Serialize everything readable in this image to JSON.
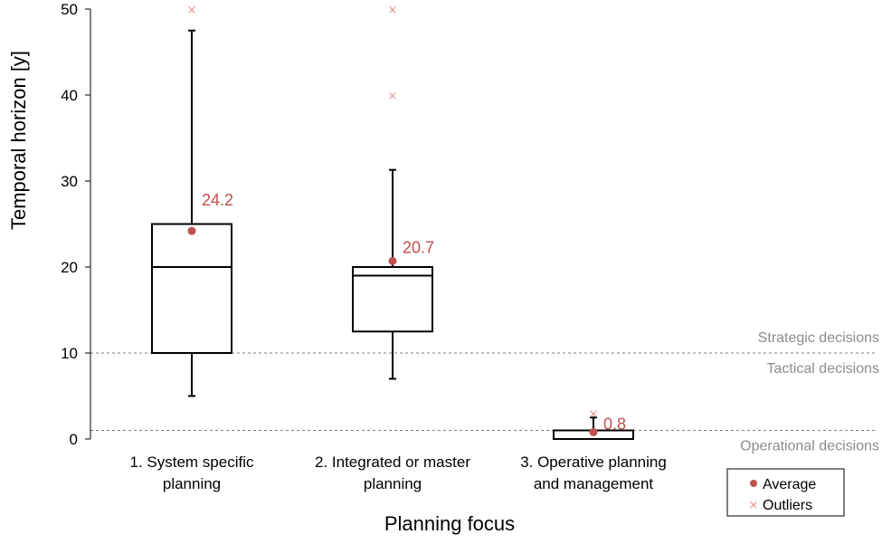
{
  "colors": {
    "accent": "#c0504d",
    "box": "#000000",
    "threshold": "#808080",
    "zone_text": "#8c8c8c"
  },
  "chart_data": {
    "type": "boxplot",
    "ylabel": "Temporal horizon [y]",
    "xlabel": "Planning focus",
    "ylim": [
      0,
      50
    ],
    "yticks": [
      0,
      10,
      20,
      30,
      40,
      50
    ],
    "categories": [
      [
        "1. System specific",
        "planning"
      ],
      [
        "2. Integrated or master",
        "planning"
      ],
      [
        "3. Operative planning",
        "and management"
      ]
    ],
    "boxes": [
      {
        "whisker_low": 5,
        "q1": 10,
        "median": 20,
        "q3": 25,
        "whisker_high": 47.5,
        "mean": 24.2,
        "mean_label": "24.2",
        "outliers": [
          50
        ]
      },
      {
        "whisker_low": 7,
        "q1": 12.5,
        "median": 19,
        "q3": 20,
        "whisker_high": 31.3,
        "mean": 20.7,
        "mean_label": "20.7",
        "outliers": [
          40,
          50
        ]
      },
      {
        "whisker_low": 0,
        "q1": 0,
        "median": 1,
        "q3": 1,
        "whisker_high": 2.5,
        "mean": 0.8,
        "mean_label": "0.8",
        "outliers": [
          3
        ]
      }
    ],
    "thresholds": [
      {
        "value": 10,
        "label_above": "Strategic decisions",
        "label_below": "Tactical decisions"
      },
      {
        "value": 1,
        "label_above": "",
        "label_below": "Operational decisions"
      }
    ],
    "legend": {
      "position": "bottom-right",
      "items": [
        "Average",
        "Outliers"
      ]
    }
  }
}
